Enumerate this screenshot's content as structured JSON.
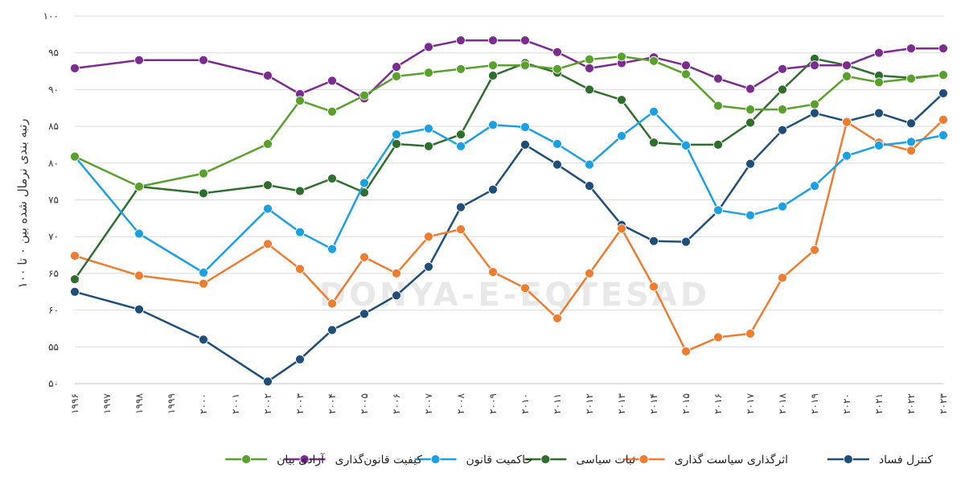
{
  "chart_data": {
    "type": "line",
    "title": "",
    "ylabel": "رتبه بندی نرمال شده بین ۰ تا ۱۰۰",
    "xlabel": "",
    "ylim": [
      50,
      100
    ],
    "yticks": [
      50,
      55,
      60,
      65,
      70,
      75,
      80,
      85,
      90,
      95,
      100
    ],
    "ytick_labels": [
      "۵۰",
      "۵۵",
      "۶۰",
      "۶۵",
      "۷۰",
      "۷۵",
      "۸۰",
      "۸۵",
      "۹۰",
      "۹۵",
      "۱۰۰"
    ],
    "x": [
      1996,
      1997,
      1998,
      1999,
      2000,
      2001,
      2002,
      2003,
      2004,
      2005,
      2006,
      2007,
      2008,
      2009,
      2010,
      2011,
      2012,
      2013,
      2014,
      2015,
      2016,
      2017,
      2018,
      2019,
      2020,
      2021,
      2022,
      2023
    ],
    "x_labels": [
      "۱۹۹۶",
      "۱۹۹۷",
      "۱۹۹۸",
      "۱۹۹۹",
      "۲۰۰۰",
      "۲۰۰۱",
      "۲۰۰۲",
      "۲۰۰۳",
      "۲۰۰۴",
      "۲۰۰۵",
      "۲۰۰۶",
      "۲۰۰۷",
      "۲۰۰۸",
      "۲۰۰۹",
      "۲۰۱۰",
      "۲۰۱۱",
      "۲۰۱۲",
      "۲۰۱۳",
      "۲۰۱۴",
      "۲۰۱۵",
      "۲۰۱۶",
      "۲۰۱۷",
      "۲۰۱۸",
      "۲۰۱۹",
      "۲۰۲۰",
      "۲۰۲۱",
      "۲۰۲۲",
      "۲۰۲۳"
    ],
    "grid": "horizontal",
    "legend_position": "bottom",
    "watermark": "DONYA-E-EQTESAD",
    "series": [
      {
        "name": "کنترل فساد",
        "color": "#1f4e79",
        "points": [
          [
            1996,
            62.5
          ],
          [
            1998,
            60.1
          ],
          [
            2000,
            56.0
          ],
          [
            2002,
            50.3
          ],
          [
            2003,
            53.3
          ],
          [
            2004,
            57.3
          ],
          [
            2005,
            59.5
          ],
          [
            2006,
            62.0
          ],
          [
            2007,
            65.9
          ],
          [
            2008,
            74.0
          ],
          [
            2009,
            76.4
          ],
          [
            2010,
            82.5
          ],
          [
            2011,
            79.8
          ],
          [
            2012,
            76.9
          ],
          [
            2013,
            71.6
          ],
          [
            2014,
            69.4
          ],
          [
            2015,
            69.3
          ],
          [
            2016,
            73.5
          ],
          [
            2017,
            79.9
          ],
          [
            2018,
            84.5
          ],
          [
            2019,
            86.8
          ],
          [
            2020,
            85.7
          ],
          [
            2021,
            86.8
          ],
          [
            2022,
            85.4
          ],
          [
            2023,
            89.5
          ]
        ]
      },
      {
        "name": "اثرگذاری سیاست گذاری",
        "color": "#ed7d31",
        "points": [
          [
            1996,
            67.4
          ],
          [
            1998,
            64.7
          ],
          [
            2000,
            63.6
          ],
          [
            2002,
            69.0
          ],
          [
            2003,
            65.6
          ],
          [
            2004,
            60.9
          ],
          [
            2005,
            67.2
          ],
          [
            2006,
            65.0
          ],
          [
            2007,
            70.0
          ],
          [
            2008,
            71.0
          ],
          [
            2009,
            65.2
          ],
          [
            2010,
            63.0
          ],
          [
            2011,
            58.9
          ],
          [
            2012,
            65.0
          ],
          [
            2013,
            71.1
          ],
          [
            2014,
            63.2
          ],
          [
            2015,
            54.4
          ],
          [
            2016,
            56.3
          ],
          [
            2017,
            56.8
          ],
          [
            2018,
            64.4
          ],
          [
            2019,
            68.2
          ],
          [
            2020,
            85.6
          ],
          [
            2021,
            82.8
          ],
          [
            2022,
            81.7
          ],
          [
            2023,
            85.9
          ]
        ]
      },
      {
        "name": "ثبات سیاسی",
        "color": "#2f6e2f",
        "points": [
          [
            1996,
            64.2
          ],
          [
            1998,
            76.8
          ],
          [
            2000,
            75.9
          ],
          [
            2002,
            77.0
          ],
          [
            2003,
            76.2
          ],
          [
            2004,
            77.9
          ],
          [
            2005,
            76.0
          ],
          [
            2006,
            82.6
          ],
          [
            2007,
            82.3
          ],
          [
            2008,
            83.9
          ],
          [
            2009,
            91.9
          ],
          [
            2010,
            93.6
          ],
          [
            2011,
            92.3
          ],
          [
            2012,
            90.0
          ],
          [
            2013,
            88.6
          ],
          [
            2014,
            82.8
          ],
          [
            2015,
            82.5
          ],
          [
            2016,
            82.5
          ],
          [
            2017,
            85.5
          ],
          [
            2018,
            90.0
          ],
          [
            2019,
            94.2
          ],
          [
            2020,
            93.3
          ],
          [
            2021,
            91.9
          ],
          [
            2022,
            91.6
          ],
          [
            2023,
            92.0
          ]
        ]
      },
      {
        "name": "حاکمیت قانون",
        "color": "#1ba1e2",
        "points": [
          [
            1996,
            80.9
          ],
          [
            1998,
            70.4
          ],
          [
            2000,
            65.1
          ],
          [
            2002,
            73.8
          ],
          [
            2003,
            70.6
          ],
          [
            2004,
            68.3
          ],
          [
            2005,
            77.3
          ],
          [
            2006,
            83.9
          ],
          [
            2007,
            84.7
          ],
          [
            2008,
            82.3
          ],
          [
            2009,
            85.2
          ],
          [
            2010,
            84.9
          ],
          [
            2011,
            82.6
          ],
          [
            2012,
            79.8
          ],
          [
            2013,
            83.7
          ],
          [
            2014,
            87.0
          ],
          [
            2015,
            82.4
          ],
          [
            2016,
            73.6
          ],
          [
            2017,
            72.9
          ],
          [
            2018,
            74.1
          ],
          [
            2019,
            76.9
          ],
          [
            2020,
            81.0
          ],
          [
            2021,
            82.4
          ],
          [
            2022,
            82.9
          ],
          [
            2023,
            83.8
          ]
        ]
      },
      {
        "name": "کیفیت قانون‌گذاری",
        "color": "#7b2c8f",
        "points": [
          [
            1996,
            92.9
          ],
          [
            1998,
            94.0
          ],
          [
            2000,
            94.0
          ],
          [
            2002,
            91.9
          ],
          [
            2003,
            89.4
          ],
          [
            2004,
            91.2
          ],
          [
            2005,
            88.8
          ],
          [
            2006,
            93.1
          ],
          [
            2007,
            95.8
          ],
          [
            2008,
            96.7
          ],
          [
            2009,
            96.7
          ],
          [
            2010,
            96.7
          ],
          [
            2011,
            95.1
          ],
          [
            2012,
            92.9
          ],
          [
            2013,
            93.6
          ],
          [
            2014,
            94.4
          ],
          [
            2015,
            93.3
          ],
          [
            2016,
            91.5
          ],
          [
            2017,
            90.1
          ],
          [
            2018,
            92.8
          ],
          [
            2019,
            93.3
          ],
          [
            2020,
            93.3
          ],
          [
            2021,
            95.0
          ],
          [
            2022,
            95.6
          ],
          [
            2023,
            95.6
          ]
        ]
      },
      {
        "name": "آزادی بیان",
        "color": "#5aa02c",
        "points": [
          [
            1996,
            80.9
          ],
          [
            1998,
            76.8
          ],
          [
            2000,
            78.6
          ],
          [
            2002,
            82.6
          ],
          [
            2003,
            88.5
          ],
          [
            2004,
            87.0
          ],
          [
            2005,
            89.2
          ],
          [
            2006,
            91.8
          ],
          [
            2007,
            92.3
          ],
          [
            2008,
            92.8
          ],
          [
            2009,
            93.3
          ],
          [
            2010,
            93.3
          ],
          [
            2011,
            92.8
          ],
          [
            2012,
            94.1
          ],
          [
            2013,
            94.5
          ],
          [
            2014,
            93.9
          ],
          [
            2015,
            92.1
          ],
          [
            2016,
            87.8
          ],
          [
            2017,
            87.3
          ],
          [
            2018,
            87.3
          ],
          [
            2019,
            88.0
          ],
          [
            2020,
            91.8
          ],
          [
            2021,
            91.0
          ],
          [
            2022,
            91.5
          ],
          [
            2023,
            92.0
          ]
        ]
      }
    ]
  }
}
